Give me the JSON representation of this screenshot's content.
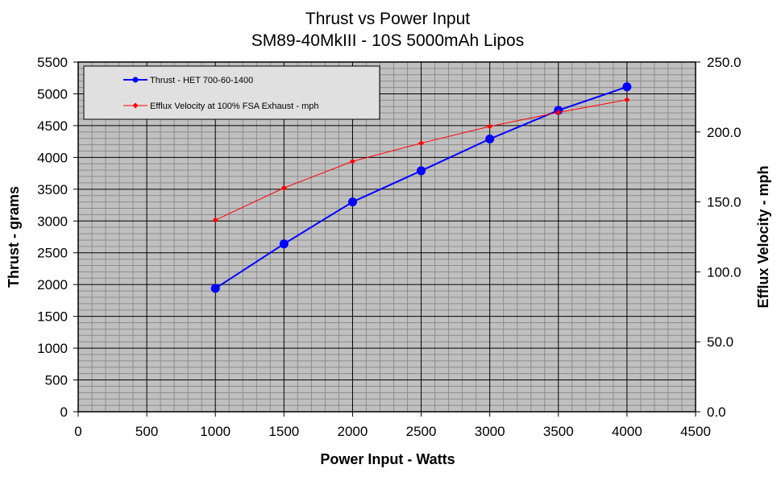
{
  "chart_data": {
    "type": "line",
    "title": "Thrust vs Power Input",
    "subtitle": "SM89-40MkIII - 10S 5000mAh Lipos",
    "xlabel": "Power Input - Watts",
    "ylabel": "Thrust - grams",
    "y2label": "Efflux Velocity - mph",
    "xlim": [
      0,
      4500
    ],
    "ylim": [
      0,
      5500
    ],
    "y2lim": [
      0,
      250
    ],
    "xticks": [
      "0",
      "500",
      "1000",
      "1500",
      "2000",
      "2500",
      "3000",
      "3500",
      "4000",
      "4500"
    ],
    "yticks": [
      "0",
      "500",
      "1000",
      "1500",
      "2000",
      "2500",
      "3000",
      "3500",
      "4000",
      "4500",
      "5000",
      "5500"
    ],
    "y2ticks": [
      "0.0",
      "50.0",
      "100.0",
      "150.0",
      "200.0",
      "250.0"
    ],
    "grid": true,
    "plot_background": "#c0c0c0",
    "legend_position": "top-left",
    "series": [
      {
        "name": "Thrust - HET 700-60-1400",
        "axis": "left",
        "color": "#0000ff",
        "x": [
          1000,
          1500,
          2000,
          2500,
          3000,
          3500,
          4000
        ],
        "values": [
          1940,
          2640,
          3300,
          3790,
          4290,
          4740,
          5110
        ]
      },
      {
        "name": "Efflux Velocity at 100% FSA Exhaust - mph",
        "axis": "right",
        "color": "#ff0000",
        "x": [
          1000,
          1500,
          2000,
          2500,
          3000,
          3500,
          4000
        ],
        "values": [
          137,
          160,
          179,
          192,
          204,
          214,
          223
        ]
      }
    ]
  }
}
